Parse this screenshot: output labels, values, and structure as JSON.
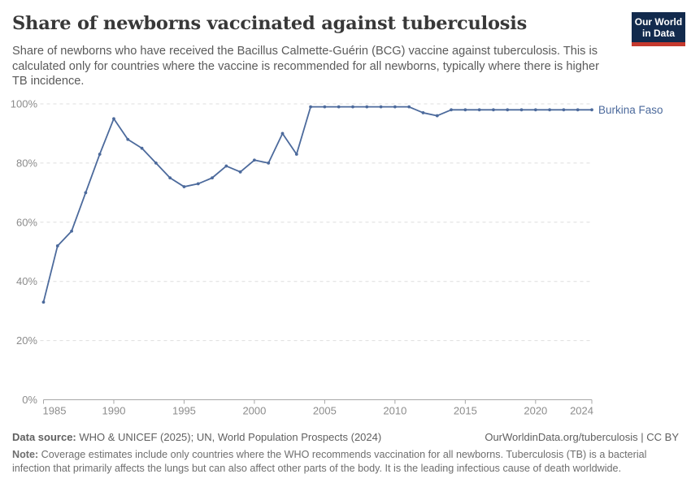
{
  "header": {
    "title": "Share of newborns vaccinated against tuberculosis",
    "subtitle": "Share of newborns who have received the Bacillus Calmette-Guérin (BCG) vaccine against tuberculosis. This is calculated only for countries where the vaccine is recommended for all newborns, typically where there is higher TB incidence.",
    "logo": {
      "line1": "Our World",
      "line2": "in Data",
      "bg_color": "#122A4D",
      "stripe_color": "#C5392E"
    }
  },
  "chart_data": {
    "type": "line",
    "title": "Share of newborns vaccinated against tuberculosis",
    "x": [
      1985,
      1986,
      1987,
      1988,
      1989,
      1990,
      1991,
      1992,
      1993,
      1994,
      1995,
      1996,
      1997,
      1998,
      1999,
      2000,
      2001,
      2002,
      2003,
      2004,
      2005,
      2006,
      2007,
      2008,
      2009,
      2010,
      2011,
      2012,
      2013,
      2014,
      2015,
      2016,
      2017,
      2018,
      2019,
      2020,
      2021,
      2022,
      2023,
      2024
    ],
    "series": [
      {
        "name": "Burkina Faso",
        "color": "#4C6A9C",
        "values": [
          33,
          52,
          57,
          70,
          83,
          95,
          88,
          85,
          80,
          75,
          72,
          73,
          75,
          79,
          77,
          81,
          80,
          90,
          83,
          99,
          99,
          99,
          99,
          99,
          99,
          99,
          99,
          97,
          96,
          98,
          98,
          98,
          98,
          98,
          98,
          98,
          98,
          98,
          98,
          98
        ]
      }
    ],
    "xlabel": "",
    "ylabel": "",
    "unit": "%",
    "xlim": [
      1985,
      2024
    ],
    "ylim": [
      0,
      100
    ],
    "xticks": [
      1985,
      1990,
      1995,
      2000,
      2005,
      2010,
      2015,
      2020,
      2024
    ],
    "yticks": [
      0,
      20,
      40,
      60,
      80,
      100
    ],
    "grid": "horizontal-dashed",
    "legend_position": "end-of-line",
    "gridline_color": "#dedede",
    "axis_color": "#a7a7a7",
    "tick_label_color": "#8c8c8c"
  },
  "footer": {
    "datasource_label": "Data source:",
    "datasource_text": " WHO & UNICEF (2025); UN, World Population Prospects (2024)",
    "link_text": "OurWorldinData.org/tuberculosis | CC BY",
    "note_label": "Note:",
    "note_text": " Coverage estimates include only countries where the WHO recommends vaccination for all newborns. Tuberculosis (TB) is a bacterial infection that primarily affects the lungs but can also affect other parts of the body. It is the leading infectious cause of death worldwide."
  }
}
